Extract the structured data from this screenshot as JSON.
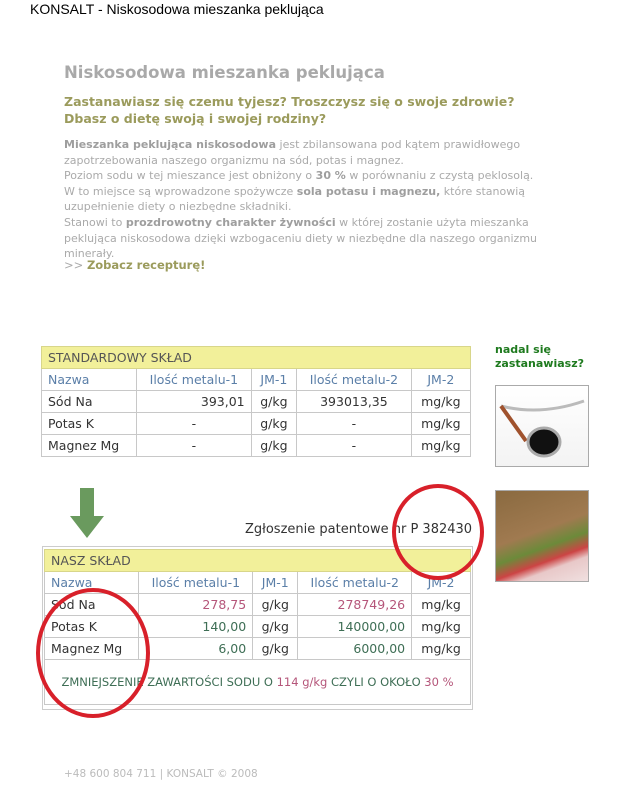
{
  "window_title": "KONSALT - Niskosodowa mieszanka peklująca",
  "heading": "Niskosodowa mieszanka peklująca",
  "subheading": [
    "Zastanawiasz się czemu tyjesz? Troszczysz się o swoje zdrowie?",
    "Dbasz o dietę swoją i swojej rodziny?"
  ],
  "paragraph": {
    "p1_bold": "Mieszanka peklująca niskosodowa",
    "p1": " jest zbilansowana pod kątem prawidłowego zapotrzebowania naszego organizmu na sód, potas i magnez.",
    "p2a": "Poziom sodu w tej mieszance jest obniżony o ",
    "p2_bold": "30 %",
    "p2b": " w porównaniu z czystą peklosolą.",
    "p3a": "W to miejsce są wprowadzone spożywcze ",
    "p3_bold": "sola potasu i magnezu,",
    "p3b": " które stanowią uzupełnienie diety o niezbędne składniki.",
    "p4a": "Stanowi to ",
    "p4_bold": "prozdrowotny charakter żywności",
    "p4b": " w której zostanie użyta mieszanka peklująca niskosodowa dzięki wzbogaceniu diety w niezbędne dla naszego organizmu minerały."
  },
  "link": {
    "prefix": ">> ",
    "label": "Zobacz recepturę!"
  },
  "standard_table": {
    "caption": "STANDARDOWY SKŁAD",
    "headers": [
      "Nazwa",
      "Ilość metalu-1",
      "JM-1",
      "Ilość metalu-2",
      "JM-2"
    ],
    "rows": [
      [
        "Sód Na",
        "393,01",
        "g/kg",
        "393013,35",
        "mg/kg"
      ],
      [
        "Potas K",
        "-",
        "g/kg",
        "-",
        "mg/kg"
      ],
      [
        "Magnez Mg",
        "-",
        "g/kg",
        "-",
        "mg/kg"
      ]
    ]
  },
  "patent": "Zgłoszenie patentowe nr P 382430",
  "our_table": {
    "caption": "NASZ SKŁAD",
    "headers": [
      "Nazwa",
      "Ilość metalu-1",
      "JM-1",
      "Ilość metalu-2",
      "JM-2"
    ],
    "rows": [
      [
        "Sód Na",
        "278,75",
        "g/kg",
        "278749,26",
        "mg/kg"
      ],
      [
        "Potas K",
        "140,00",
        "g/kg",
        "140000,00",
        "mg/kg"
      ],
      [
        "Magnez Mg",
        "6,00",
        "g/kg",
        "6000,00",
        "mg/kg"
      ]
    ],
    "footer": {
      "a": "ZMNIEJSZENIE ZAWARTOŚCI SODU O ",
      "b": "114 g/kg",
      "c": " CZYLI O OKOŁO ",
      "d": "30 %"
    }
  },
  "sidebar": {
    "line1": "nadal się",
    "line2": "zastanawiasz?"
  },
  "footer": "+48 600 804 711 | KONSALT © 2008",
  "colors": {
    "accent_olive": "#9b9b5c",
    "table_caption": "#f2f09a",
    "circle": "#d8202a",
    "arrow": "#6a9a5e"
  }
}
